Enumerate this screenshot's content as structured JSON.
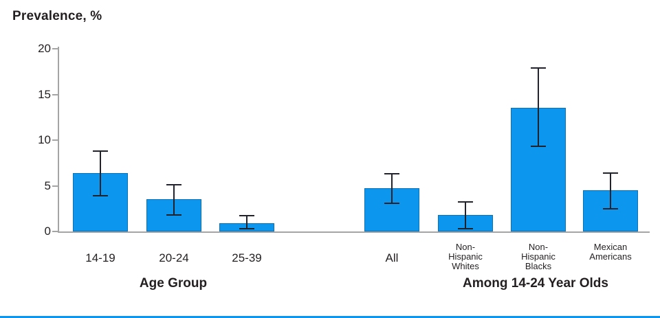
{
  "title": "Prevalence, %",
  "colors": {
    "bar": "#0D96ED",
    "bar_border": "#0A70B8",
    "error_bar": "#22222C",
    "axis": "#A4A4A4",
    "text": "#231F20",
    "bottom_rule": "#0D96ED"
  },
  "chart_data": {
    "type": "bar",
    "title": "Prevalence, %",
    "ylabel": "Prevalence, %",
    "xlabel": "",
    "ylim": [
      0,
      20
    ],
    "yticks": [
      0,
      5,
      10,
      15,
      20
    ],
    "grid": false,
    "error_bars": true,
    "groups": [
      {
        "label": "Age Group",
        "bars": [
          {
            "category": "14-19",
            "value": 6.4,
            "ci_low": 3.9,
            "ci_high": 8.8,
            "label_lines": [
              "14-19"
            ],
            "big_label": true
          },
          {
            "category": "20-24",
            "value": 3.5,
            "ci_low": 1.8,
            "ci_high": 5.1,
            "label_lines": [
              "20-24"
            ],
            "big_label": true
          },
          {
            "category": "25-39",
            "value": 0.9,
            "ci_low": 0.3,
            "ci_high": 1.7,
            "label_lines": [
              "25-39"
            ],
            "big_label": true
          }
        ]
      },
      {
        "label": "Among 14-24 Year Olds",
        "bars": [
          {
            "category": "All",
            "value": 4.7,
            "ci_low": 3.1,
            "ci_high": 6.3,
            "label_lines": [
              "All"
            ],
            "big_label": true
          },
          {
            "category": "Non-Hispanic Whites",
            "value": 1.8,
            "ci_low": 0.3,
            "ci_high": 3.2,
            "label_lines": [
              "Non-",
              "Hispanic",
              "Whites"
            ],
            "big_label": false
          },
          {
            "category": "Non-Hispanic Blacks",
            "value": 13.5,
            "ci_low": 9.3,
            "ci_high": 17.9,
            "label_lines": [
              "Non-",
              "Hispanic",
              "Blacks"
            ],
            "big_label": false
          },
          {
            "category": "Mexican Americans",
            "value": 4.5,
            "ci_low": 2.5,
            "ci_high": 6.4,
            "label_lines": [
              "Mexican",
              "Americans"
            ],
            "big_label": false
          }
        ]
      }
    ]
  }
}
